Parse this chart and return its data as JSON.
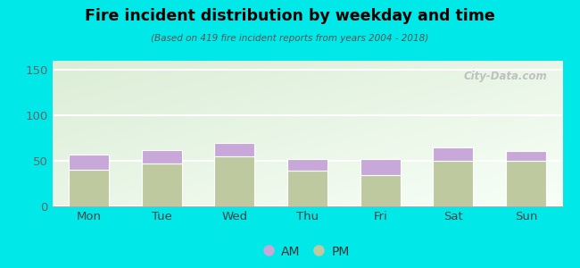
{
  "title": "Fire incident distribution by weekday and time",
  "subtitle": "(Based on 419 fire incident reports from years 2004 - 2018)",
  "categories": [
    "Mon",
    "Tue",
    "Wed",
    "Thu",
    "Fri",
    "Sat",
    "Sun"
  ],
  "pm_values": [
    40,
    47,
    55,
    39,
    34,
    50,
    50
  ],
  "am_values": [
    17,
    15,
    14,
    13,
    18,
    15,
    11
  ],
  "am_color": "#c8a8d8",
  "pm_color": "#bec9a0",
  "background_outer": "#00e8e8",
  "ylim": [
    0,
    160
  ],
  "yticks": [
    0,
    50,
    100,
    150
  ],
  "bar_width": 0.55,
  "watermark": "City-Data.com"
}
